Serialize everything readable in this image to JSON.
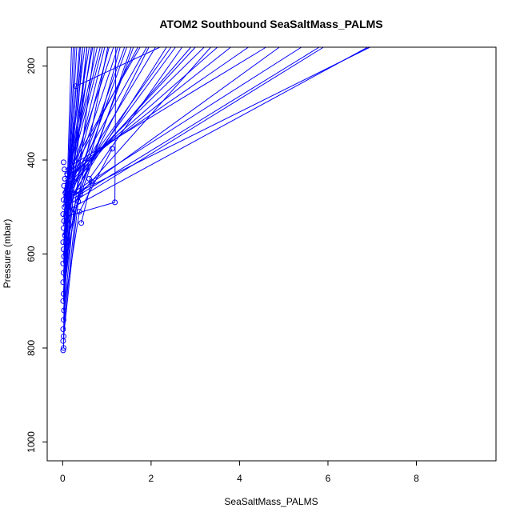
{
  "chart_data": {
    "type": "line",
    "title": "ATOM2 Southbound SeaSaltMass_PALMS",
    "xlabel": "SeaSaltMass_PALMS",
    "ylabel": "Pressure (mbar)",
    "xlim": [
      -0.35,
      9.8
    ],
    "ylim": [
      1040,
      160
    ],
    "y_axis_inverted": true,
    "grid": false,
    "legend": "none",
    "series_color": "#0000ff",
    "x_ticks": [
      0,
      2,
      4,
      6,
      8
    ],
    "y_ticks": [
      200,
      400,
      600,
      800,
      1000
    ],
    "points": [
      [
        0.02,
        405
      ],
      [
        0.04,
        420
      ],
      [
        0.05,
        440
      ],
      [
        0.03,
        455
      ],
      [
        0.06,
        470
      ],
      [
        0.02,
        485
      ],
      [
        0.04,
        500
      ],
      [
        0.01,
        515
      ],
      [
        0.03,
        530
      ],
      [
        0.02,
        545
      ],
      [
        0.05,
        560
      ],
      [
        0.01,
        575
      ],
      [
        0.02,
        590
      ],
      [
        0.03,
        605
      ],
      [
        0.01,
        620
      ],
      [
        0.02,
        640
      ],
      [
        0.01,
        660
      ],
      [
        0.02,
        685
      ],
      [
        0.01,
        700
      ],
      [
        0.03,
        720
      ],
      [
        0.02,
        740
      ],
      [
        0.01,
        760
      ],
      [
        0.02,
        775
      ],
      [
        0.01,
        785
      ],
      [
        0.02,
        800
      ],
      [
        0.01,
        805
      ],
      [
        0.3,
        243
      ],
      [
        0.35,
        488
      ],
      [
        0.25,
        505
      ],
      [
        0.4,
        472
      ],
      [
        0.38,
        510
      ],
      [
        0.42,
        534
      ],
      [
        0.6,
        440
      ],
      [
        0.65,
        446
      ],
      [
        1.12,
        376
      ],
      [
        1.18,
        490
      ],
      [
        0.15,
        478
      ],
      [
        0.2,
        462
      ],
      [
        0.1,
        430
      ],
      [
        0.18,
        450
      ],
      [
        0.12,
        495
      ],
      [
        0.08,
        520
      ]
    ],
    "segments": [
      [
        [
          0.02,
          700
        ],
        [
          0.55,
          160
        ]
      ],
      [
        [
          0.02,
          690
        ],
        [
          0.72,
          160
        ]
      ],
      [
        [
          0.02,
          640
        ],
        [
          1.02,
          160
        ]
      ],
      [
        [
          0.02,
          600
        ],
        [
          1.3,
          160
        ]
      ],
      [
        [
          0.02,
          560
        ],
        [
          1.6,
          160
        ]
      ],
      [
        [
          0.02,
          520
        ],
        [
          1.95,
          160
        ]
      ],
      [
        [
          0.05,
          500
        ],
        [
          2.35,
          160
        ]
      ],
      [
        [
          0.05,
          480
        ],
        [
          2.55,
          160
        ]
      ],
      [
        [
          0.05,
          470
        ],
        [
          2.9,
          160
        ]
      ],
      [
        [
          0.05,
          460
        ],
        [
          3.0,
          160
        ]
      ],
      [
        [
          0.05,
          450
        ],
        [
          3.2,
          160
        ]
      ],
      [
        [
          0.05,
          445
        ],
        [
          3.5,
          160
        ]
      ],
      [
        [
          0.05,
          440
        ],
        [
          3.8,
          160
        ]
      ],
      [
        [
          0.05,
          430
        ],
        [
          4.2,
          160
        ]
      ],
      [
        [
          0.05,
          420
        ],
        [
          4.6,
          160
        ]
      ],
      [
        [
          0.05,
          500
        ],
        [
          5.9,
          160
        ]
      ],
      [
        [
          0.05,
          510
        ],
        [
          6.9,
          160
        ]
      ],
      [
        [
          0.1,
          490
        ],
        [
          5.8,
          160
        ]
      ],
      [
        [
          0.1,
          480
        ],
        [
          6.95,
          160
        ]
      ],
      [
        [
          0.05,
          530
        ],
        [
          1.45,
          160
        ]
      ],
      [
        [
          0.05,
          470
        ],
        [
          0.9,
          160
        ]
      ],
      [
        [
          0.05,
          465
        ],
        [
          1.15,
          160
        ]
      ],
      [
        [
          0.05,
          455
        ],
        [
          1.7,
          160
        ]
      ],
      [
        [
          0.05,
          470
        ],
        [
          1.9,
          160
        ]
      ],
      [
        [
          0.05,
          480
        ],
        [
          2.1,
          160
        ]
      ],
      [
        [
          0.3,
          243
        ],
        [
          2.2,
          160
        ]
      ],
      [
        [
          0.02,
          640
        ],
        [
          0.3,
          243
        ]
      ],
      [
        [
          0.02,
          700
        ],
        [
          0.2,
          160
        ]
      ],
      [
        [
          0.02,
          680
        ],
        [
          0.24,
          160
        ]
      ],
      [
        [
          0.02,
          650
        ],
        [
          0.28,
          160
        ]
      ],
      [
        [
          0.02,
          620
        ],
        [
          0.32,
          160
        ]
      ],
      [
        [
          0.02,
          580
        ],
        [
          0.38,
          160
        ]
      ],
      [
        [
          0.02,
          540
        ],
        [
          0.45,
          160
        ]
      ],
      [
        [
          0.02,
          520
        ],
        [
          0.5,
          160
        ]
      ],
      [
        [
          0.02,
          500
        ],
        [
          0.6,
          160
        ]
      ],
      [
        [
          0.02,
          490
        ],
        [
          0.68,
          160
        ]
      ],
      [
        [
          0.02,
          480
        ],
        [
          0.78,
          160
        ]
      ],
      [
        [
          0.02,
          470
        ],
        [
          0.85,
          160
        ]
      ],
      [
        [
          1.18,
          490
        ],
        [
          1.2,
          160
        ]
      ],
      [
        [
          0.3,
          505
        ],
        [
          1.55,
          160
        ]
      ],
      [
        [
          0.6,
          440
        ],
        [
          2.7,
          160
        ]
      ],
      [
        [
          0.4,
          472
        ],
        [
          3.35,
          160
        ]
      ],
      [
        [
          0.05,
          490
        ],
        [
          4.9,
          160
        ]
      ],
      [
        [
          0.05,
          480
        ],
        [
          5.4,
          160
        ]
      ],
      [
        [
          0.1,
          470
        ],
        [
          2.45,
          160
        ]
      ],
      [
        [
          0.05,
          500
        ],
        [
          1.25,
          160
        ]
      ],
      [
        [
          0.05,
          510
        ],
        [
          0.95,
          160
        ]
      ],
      [
        [
          0.15,
          478
        ],
        [
          1.05,
          160
        ]
      ],
      [
        [
          0.1,
          430
        ],
        [
          1.75,
          160
        ]
      ],
      [
        [
          0.12,
          495
        ],
        [
          1.4,
          160
        ]
      ],
      [
        [
          0.02,
          560
        ],
        [
          0.65,
          160
        ]
      ],
      [
        [
          0.02,
          600
        ],
        [
          0.55,
          160
        ]
      ],
      [
        [
          0.02,
          660
        ],
        [
          0.4,
          160
        ]
      ],
      [
        [
          0.02,
          720
        ],
        [
          0.45,
          160
        ]
      ],
      [
        [
          0.38,
          510
        ],
        [
          1.12,
          376
        ]
      ],
      [
        [
          0.42,
          534
        ],
        [
          0.65,
          446
        ]
      ],
      [
        [
          0.08,
          520
        ],
        [
          1.18,
          490
        ]
      ],
      [
        [
          0.02,
          760
        ],
        [
          0.3,
          505
        ]
      ],
      [
        [
          0.02,
          800
        ],
        [
          0.05,
          500
        ]
      ],
      [
        [
          0.02,
          785
        ],
        [
          0.12,
          495
        ]
      ],
      [
        [
          0.02,
          740
        ],
        [
          0.25,
          505
        ]
      ],
      [
        [
          0.02,
          775
        ],
        [
          0.35,
          488
        ]
      ],
      [
        [
          0.02,
          700
        ],
        [
          0.2,
          462
        ]
      ],
      [
        [
          0.02,
          685
        ],
        [
          0.18,
          450
        ]
      ],
      [
        [
          0.02,
          720
        ],
        [
          0.38,
          510
        ]
      ],
      [
        [
          0.02,
          605
        ],
        [
          0.15,
          478
        ]
      ]
    ]
  }
}
